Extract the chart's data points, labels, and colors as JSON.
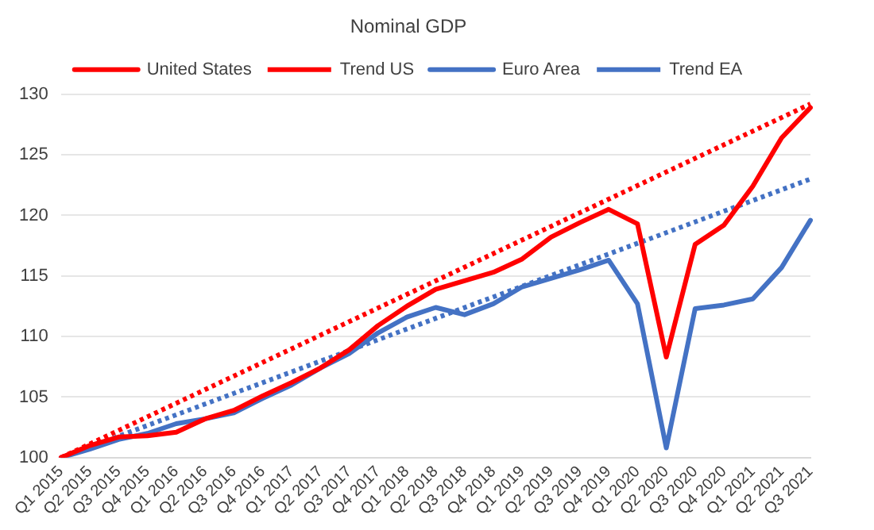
{
  "chart_data": {
    "type": "line",
    "title": "Nominal GDP",
    "categories": [
      "Q1 2015",
      "Q2 2015",
      "Q3 2015",
      "Q4 2015",
      "Q1 2016",
      "Q2 2016",
      "Q3 2016",
      "Q4 2016",
      "Q1 2017",
      "Q2 2017",
      "Q3 2017",
      "Q4 2017",
      "Q1 2018",
      "Q2 2018",
      "Q3 2018",
      "Q4 2018",
      "Q1 2019",
      "Q2 2019",
      "Q3 2019",
      "Q4 2019",
      "Q1 2020",
      "Q2 2020",
      "Q3 2020",
      "Q4 2020",
      "Q1 2021",
      "Q2 2021",
      "Q3 2021"
    ],
    "series": [
      {
        "name": "United States",
        "color": "#ff0000",
        "line_style": "solid",
        "values": [
          100,
          101.0,
          101.7,
          101.8,
          102.1,
          103.2,
          103.9,
          105.1,
          106.2,
          107.4,
          108.9,
          110.9,
          112.5,
          113.9,
          114.6,
          115.3,
          116.4,
          118.2,
          119.4,
          120.5,
          119.3,
          108.3,
          117.6,
          119.2,
          122.4,
          126.4,
          128.9
        ]
      },
      {
        "name": "Trend US",
        "color": "#ff0000",
        "line_style": "dotted",
        "x": [
          "Q1 2015",
          "Q3 2021"
        ],
        "values": [
          100,
          129.2
        ]
      },
      {
        "name": "Euro Area",
        "color": "#4472c4",
        "line_style": "solid",
        "values": [
          100,
          100.7,
          101.5,
          102.0,
          102.8,
          103.2,
          103.7,
          104.9,
          106.0,
          107.4,
          108.6,
          110.3,
          111.6,
          112.4,
          111.8,
          112.7,
          114.1,
          114.8,
          115.5,
          116.3,
          112.7,
          100.8,
          112.3,
          112.6,
          113.1,
          115.7,
          119.6
        ]
      },
      {
        "name": "Trend EA",
        "color": "#4472c4",
        "line_style": "dotted",
        "x": [
          "Q1 2015",
          "Q3 2021"
        ],
        "values": [
          100,
          123.0
        ]
      }
    ],
    "ylim": [
      100,
      130
    ],
    "yticks": [
      100,
      105,
      110,
      115,
      120,
      125,
      130
    ],
    "grid": "y",
    "legend": "top",
    "marker": "none"
  }
}
